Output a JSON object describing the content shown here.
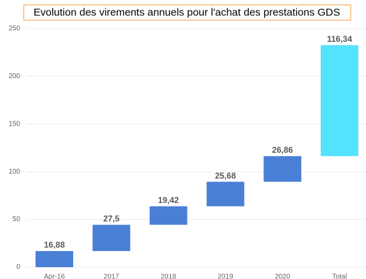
{
  "chart_data": {
    "type": "waterfall",
    "title": "Evolution des virements annuels pour l'achat des prestations GDS",
    "categories": [
      "Apr-16",
      "2017",
      "2018",
      "2019",
      "2020",
      "Total"
    ],
    "values": [
      16.88,
      27.5,
      19.42,
      25.68,
      26.86,
      116.34
    ],
    "value_labels": [
      "16,88",
      "27,5",
      "19,42",
      "25,68",
      "26,86",
      "116,34"
    ],
    "colors": [
      "#4a7fd6",
      "#4a7fd6",
      "#4a7fd6",
      "#4a7fd6",
      "#4a7fd6",
      "#55e2ff"
    ],
    "ylim": [
      0,
      250
    ],
    "yticks": [
      0,
      50,
      100,
      150,
      200,
      250
    ],
    "grid": true
  }
}
